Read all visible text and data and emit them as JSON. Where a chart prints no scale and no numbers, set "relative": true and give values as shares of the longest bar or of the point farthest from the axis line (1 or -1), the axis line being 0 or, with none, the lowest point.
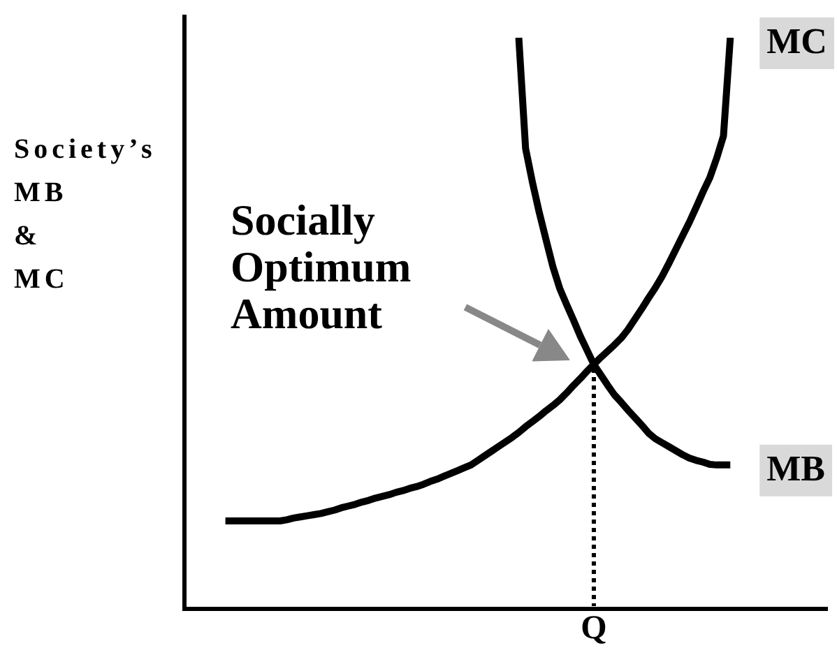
{
  "chart_data": {
    "type": "line",
    "relative": true,
    "ylabel": "Society’s MB & MC",
    "categories": [
      null,
      null,
      null,
      null,
      null,
      null,
      null,
      null,
      null,
      null,
      null,
      null,
      null,
      null,
      null,
      null,
      null,
      null,
      null,
      null,
      null,
      null,
      null,
      null,
      null,
      null,
      null,
      null,
      null,
      null,
      null,
      null,
      null,
      null,
      null,
      null,
      null,
      null,
      null,
      null,
      null,
      null,
      null,
      null,
      null,
      null,
      null,
      null,
      null,
      null,
      null,
      null,
      null,
      null,
      null,
      null,
      null,
      null,
      null,
      null,
      null,
      null,
      null,
      null,
      null,
      null,
      null,
      null,
      null,
      null,
      null,
      null,
      null,
      null,
      null,
      null,
      null,
      null,
      null,
      null,
      null,
      null,
      null,
      null,
      null,
      null,
      null,
      null,
      null,
      null,
      null,
      null,
      null,
      null,
      null
    ],
    "series": [
      {
        "name": "MC",
        "color": "#000000",
        "values": [
          null,
          null,
          null,
          null,
          null,
          null,
          0.154,
          0.154,
          0.154,
          0.154,
          0.154,
          0.154,
          0.154,
          0.154,
          0.154,
          0.156,
          0.159,
          0.161,
          0.163,
          0.165,
          0.167,
          0.17,
          0.173,
          0.177,
          0.18,
          0.183,
          0.187,
          0.19,
          0.194,
          0.197,
          0.2,
          0.204,
          0.207,
          0.211,
          0.214,
          0.218,
          0.223,
          0.227,
          0.232,
          0.237,
          0.242,
          0.247,
          0.252,
          0.26,
          0.268,
          0.276,
          0.284,
          0.292,
          0.3,
          0.309,
          0.319,
          0.328,
          0.337,
          0.347,
          0.356,
          0.366,
          0.378,
          0.391,
          0.403,
          0.416,
          0.428,
          0.44,
          0.451,
          0.462,
          0.474,
          0.489,
          0.507,
          0.525,
          0.544,
          0.562,
          0.582,
          0.605,
          0.629,
          0.653,
          0.677,
          0.703,
          0.73,
          0.755,
          0.789,
          0.828,
          1.0,
          null,
          null,
          null,
          null,
          null,
          null,
          null,
          null,
          null,
          null,
          null,
          null,
          null,
          null
        ]
      },
      {
        "name": "MB",
        "color": "#000000",
        "values": [
          null,
          null,
          null,
          null,
          null,
          null,
          null,
          null,
          null,
          null,
          null,
          null,
          null,
          null,
          null,
          null,
          null,
          null,
          null,
          null,
          null,
          null,
          null,
          null,
          null,
          null,
          null,
          null,
          null,
          null,
          null,
          null,
          null,
          null,
          null,
          null,
          null,
          null,
          null,
          null,
          null,
          null,
          null,
          null,
          null,
          null,
          null,
          null,
          null,
          1.0,
          0.806,
          0.747,
          0.694,
          0.646,
          0.599,
          0.561,
          0.533,
          0.506,
          0.478,
          0.453,
          0.428,
          0.41,
          0.392,
          0.375,
          0.362,
          0.348,
          0.335,
          0.322,
          0.308,
          0.298,
          0.291,
          0.284,
          0.277,
          0.27,
          0.264,
          0.26,
          0.257,
          0.253,
          0.252,
          0.252,
          0.252,
          null,
          null,
          null,
          null,
          null,
          null,
          null,
          null,
          null,
          null,
          null,
          null,
          null,
          null
        ]
      }
    ],
    "annotations": [
      "Socially Optimum Amount",
      "Q"
    ]
  }
}
